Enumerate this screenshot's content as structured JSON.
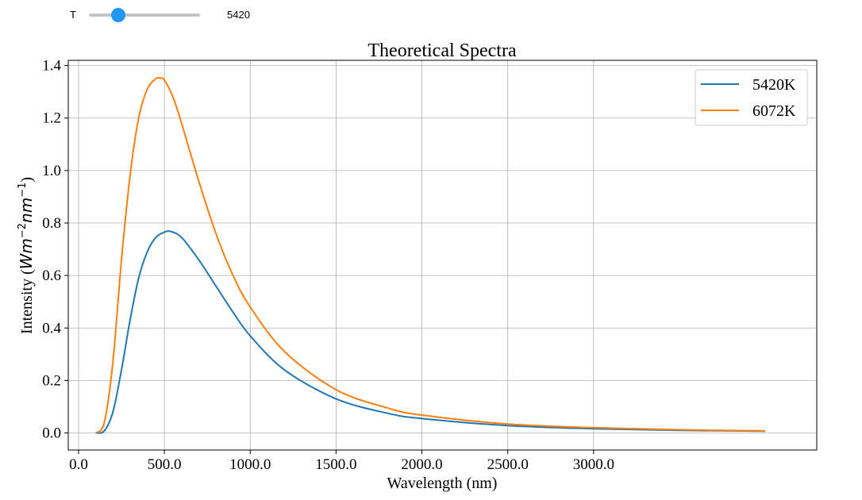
{
  "slider": {
    "label": "T",
    "value": 5420,
    "value_text": "5420",
    "min": 4500,
    "max": 8000,
    "accent": "#2196f3"
  },
  "chart_data": {
    "type": "line",
    "title": "Theoretical Spectra",
    "xlabel": "Wavelength (nm)",
    "ylabel_text": "Intensity (",
    "ylabel_unit": {
      "W": "W",
      "m": "m",
      "m_exp": "−2",
      "nm": "nm",
      "nm_exp": "−1"
    },
    "ylabel_close": ")",
    "xlim": [
      -60,
      4300
    ],
    "ylim": [
      -0.065,
      1.42
    ],
    "xticks": [
      0,
      500,
      1000,
      1500,
      2000,
      2500,
      3000
    ],
    "xtick_labels": [
      "0.0",
      "500.0",
      "1000.0",
      "1500.0",
      "2000.0",
      "2500.0",
      "3000.0"
    ],
    "yticks": [
      0,
      0.2,
      0.4,
      0.6,
      0.8,
      1.0,
      1.2,
      1.4
    ],
    "ytick_labels": [
      "0.0",
      "0.2",
      "0.4",
      "0.6",
      "0.8",
      "1.0",
      "1.2",
      "1.4"
    ],
    "grid": true,
    "legend_position": "top-right",
    "series": [
      {
        "name": "5420K",
        "color": "#1f77b4",
        "x": [
          100,
          150,
          200,
          250,
          300,
          350,
          400,
          450,
          500,
          535,
          600,
          700,
          800,
          900,
          1000,
          1200,
          1500,
          1800,
          2000,
          2500,
          3000,
          3500,
          4000
        ],
        "y": [
          0.0,
          0.008,
          0.08,
          0.24,
          0.43,
          0.59,
          0.69,
          0.745,
          0.765,
          0.768,
          0.745,
          0.66,
          0.56,
          0.46,
          0.37,
          0.24,
          0.13,
          0.075,
          0.055,
          0.028,
          0.016,
          0.01,
          0.007
        ]
      },
      {
        "name": "6072K",
        "color": "#ff7f0e",
        "x": [
          100,
          150,
          200,
          250,
          300,
          350,
          400,
          450,
          477,
          500,
          550,
          600,
          700,
          800,
          900,
          1000,
          1200,
          1500,
          1800,
          2000,
          2500,
          3000,
          3500,
          4000
        ],
        "y": [
          0.0,
          0.04,
          0.27,
          0.66,
          0.98,
          1.2,
          1.31,
          1.35,
          1.352,
          1.345,
          1.28,
          1.18,
          0.96,
          0.76,
          0.6,
          0.48,
          0.31,
          0.165,
          0.095,
          0.068,
          0.034,
          0.02,
          0.012,
          0.008
        ]
      }
    ]
  }
}
